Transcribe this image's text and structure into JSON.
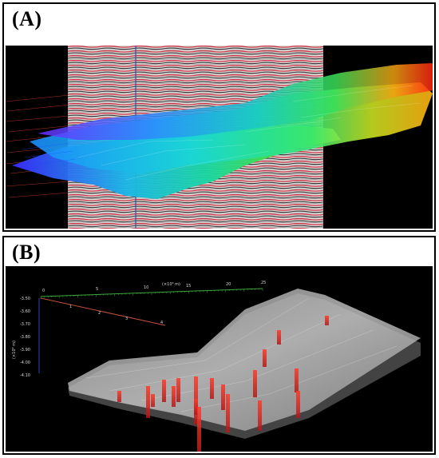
{
  "panel_a": {
    "label": "(A)",
    "colors": {
      "background": "#000000",
      "seismic_red": "#c8182c",
      "seismic_dark": "#1a1a1a",
      "horizon_low": "#1a6cff",
      "horizon_mid": "#19d6c8",
      "horizon_high": "#ff2a10",
      "well_lines": "#d83a2a"
    }
  },
  "panel_b": {
    "label": "(B)",
    "axis": {
      "x_unit_label": "(×10³ m)",
      "x_ticks": [
        "0",
        "5",
        "10",
        "15",
        "20",
        "25"
      ],
      "depth_label": "(×10³ m)",
      "depth_ticks": [
        "-3.50",
        "-3.60",
        "-3.70",
        "-3.80",
        "-3.90",
        "-4.00",
        "-4.10"
      ],
      "y_ticks": [
        "0",
        "1",
        "2",
        "3",
        "4"
      ]
    },
    "colors": {
      "background": "#000000",
      "surface": "#bdbdbd",
      "wells": "#ff2020",
      "x_axis": "#3aa83a",
      "y_axis": "#c0503a",
      "z_axis": "#3040c8"
    }
  }
}
